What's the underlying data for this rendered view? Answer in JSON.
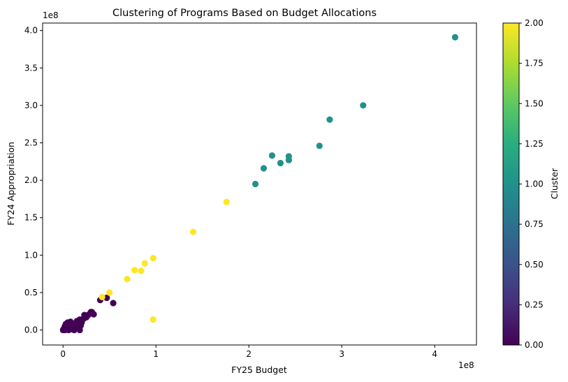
{
  "chart_data": {
    "type": "scatter",
    "title": "Clustering of Programs Based on Budget Allocations",
    "xlabel": "FY25 Budget",
    "ylabel": "FY24 Appropriation",
    "x_offset_label": "1e8",
    "y_offset_label": "1e8",
    "xlim": [
      -0.22,
      4.45
    ],
    "ylim": [
      -0.2,
      4.1
    ],
    "x_ticks": [
      0,
      1,
      2,
      3,
      4
    ],
    "x_tick_labels": [
      "0",
      "1",
      "2",
      "3",
      "4"
    ],
    "y_ticks": [
      0.0,
      0.5,
      1.0,
      1.5,
      2.0,
      2.5,
      3.0,
      3.5,
      4.0
    ],
    "y_tick_labels": [
      "0.0",
      "0.5",
      "1.0",
      "1.5",
      "2.0",
      "2.5",
      "3.0",
      "3.5",
      "4.0"
    ],
    "grid": false,
    "colorbar": {
      "label": "Cluster",
      "range": [
        0,
        2
      ],
      "colormap": "viridis",
      "ticks": [
        0.0,
        0.25,
        0.5,
        0.75,
        1.0,
        1.25,
        1.5,
        1.75,
        2.0
      ],
      "tick_labels": [
        "0.00",
        "0.25",
        "0.50",
        "0.75",
        "1.00",
        "1.25",
        "1.50",
        "1.75",
        "2.00"
      ]
    },
    "series": [
      {
        "cluster": 0,
        "color": "#440154",
        "points": [
          [
            0.0,
            0.0
          ],
          [
            0.01,
            0.02
          ],
          [
            0.02,
            0.05
          ],
          [
            0.03,
            0.08
          ],
          [
            0.04,
            0.03
          ],
          [
            0.05,
            0.1
          ],
          [
            0.06,
            0.0
          ],
          [
            0.07,
            0.06
          ],
          [
            0.08,
            0.11
          ],
          [
            0.1,
            0.01
          ],
          [
            0.11,
            0.04
          ],
          [
            0.12,
            0.0
          ],
          [
            0.13,
            0.09
          ],
          [
            0.14,
            0.07
          ],
          [
            0.15,
            0.12
          ],
          [
            0.16,
            0.03
          ],
          [
            0.18,
            0.14
          ],
          [
            0.19,
            0.06
          ],
          [
            0.2,
            0.1
          ],
          [
            0.22,
            0.15
          ],
          [
            0.23,
            0.2
          ],
          [
            0.25,
            0.17
          ],
          [
            0.27,
            0.2
          ],
          [
            0.29,
            0.22
          ],
          [
            0.3,
            0.24
          ],
          [
            0.31,
            0.24
          ],
          [
            0.33,
            0.21
          ],
          [
            0.18,
            0.0
          ],
          [
            0.02,
            0.0
          ],
          [
            0.09,
            0.02
          ],
          [
            0.4,
            0.4
          ],
          [
            0.47,
            0.43
          ],
          [
            0.54,
            0.36
          ]
        ]
      },
      {
        "cluster": 1,
        "color": "#21918c",
        "points": [
          [
            2.07,
            1.95
          ],
          [
            2.16,
            2.16
          ],
          [
            2.25,
            2.33
          ],
          [
            2.34,
            2.23
          ],
          [
            2.43,
            2.27
          ],
          [
            2.43,
            2.32
          ],
          [
            2.76,
            2.46
          ],
          [
            2.87,
            2.81
          ],
          [
            3.23,
            3.0
          ],
          [
            4.22,
            3.91
          ]
        ]
      },
      {
        "cluster": 2,
        "color": "#fde725",
        "points": [
          [
            0.42,
            0.44
          ],
          [
            0.5,
            0.5
          ],
          [
            0.69,
            0.68
          ],
          [
            0.77,
            0.8
          ],
          [
            0.84,
            0.79
          ],
          [
            0.88,
            0.89
          ],
          [
            0.97,
            0.96
          ],
          [
            0.97,
            0.14
          ],
          [
            1.4,
            1.31
          ],
          [
            1.76,
            1.71
          ]
        ]
      }
    ]
  }
}
